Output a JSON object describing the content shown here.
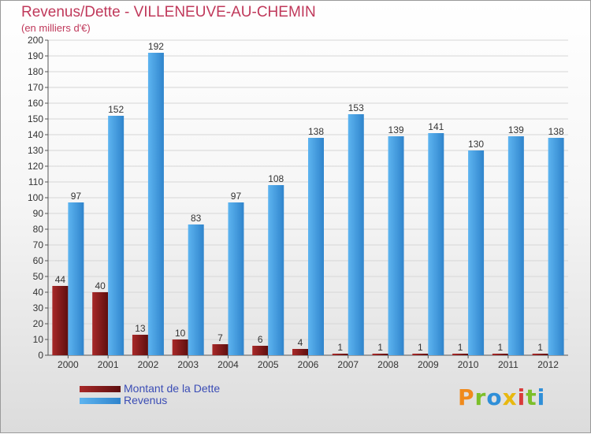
{
  "chart_data": {
    "type": "bar",
    "title": "Revenus/Dette - VILLENEUVE-AU-CHEMIN",
    "subtitle": "(en milliers d'€)",
    "categories": [
      "2000",
      "2001",
      "2002",
      "2003",
      "2004",
      "2005",
      "2006",
      "2007",
      "2008",
      "2009",
      "2010",
      "2011",
      "2012"
    ],
    "series": [
      {
        "name": "Montant de la Dette",
        "color": "#8b1a1a",
        "values": [
          44,
          40,
          13,
          10,
          7,
          6,
          4,
          1,
          1,
          1,
          1,
          1,
          1
        ]
      },
      {
        "name": "Revenus",
        "color": "#3d9be0",
        "values": [
          97,
          152,
          192,
          83,
          97,
          108,
          138,
          153,
          139,
          141,
          130,
          139,
          138
        ]
      }
    ],
    "ylim": [
      0,
      200
    ],
    "ytick_step": 10,
    "grid": true,
    "legend_position": "bottom-left"
  },
  "logo": {
    "letters": [
      {
        "ch": "P",
        "color": "#f08a1c"
      },
      {
        "ch": "r",
        "color": "#7cbf2a"
      },
      {
        "ch": "o",
        "color": "#2f8fd8"
      },
      {
        "ch": "x",
        "color": "#e8b80f"
      },
      {
        "ch": "i",
        "color": "#d93a3a"
      },
      {
        "ch": "t",
        "color": "#7cbf2a"
      },
      {
        "ch": "i",
        "color": "#2f8fd8"
      }
    ]
  }
}
